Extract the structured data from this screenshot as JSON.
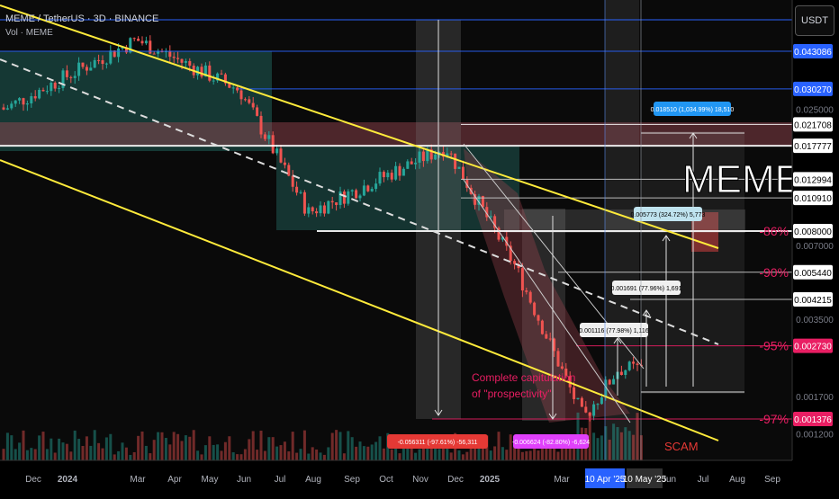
{
  "header": {
    "symbol_line": "MEME / TetherUS · 3D · BINANCE",
    "volume_line": "Vol · MEME"
  },
  "axis_unit": "USDT",
  "colors": {
    "background": "#000000",
    "up": "#26a69a",
    "down": "#ef5350",
    "channel": "#ffeb3b",
    "level_blue": "#2962ff",
    "level_white": "#ffffff",
    "pink": "#e91e63",
    "label_blue": "#2196f3"
  },
  "chart_data": {
    "type": "candlestick",
    "title": "MEME / TetherUS · 3D · BINANCE",
    "price_axis": {
      "scale": "log",
      "ticks": [
        "0.025000",
        "0.007000",
        "0.003500",
        "0.001700",
        "0.001200"
      ],
      "level_labels": [
        {
          "value": "0.043086",
          "style": "blue"
        },
        {
          "value": "0.030270",
          "style": "blue"
        },
        {
          "value": "0.021708",
          "style": "white"
        },
        {
          "value": "0.017777",
          "style": "white"
        },
        {
          "value": "0.012994",
          "style": "white"
        },
        {
          "value": "0.010910",
          "style": "white"
        },
        {
          "value": "0.008000",
          "style": "white"
        },
        {
          "value": "0.005440",
          "style": "white"
        },
        {
          "value": "0.004215",
          "style": "white"
        },
        {
          "value": "0.002730",
          "style": "pink"
        },
        {
          "value": "0.001376",
          "style": "pink"
        }
      ]
    },
    "time_axis": {
      "ticks": [
        "Dec",
        "2024",
        "Mar",
        "Apr",
        "May",
        "Jun",
        "Jul",
        "Aug",
        "Sep",
        "Oct",
        "Nov",
        "Dec",
        "2025",
        "Mar",
        "Jun",
        "Jul",
        "Aug",
        "Sep"
      ],
      "highlighted": [
        "10 Apr '25",
        "10 May '25"
      ]
    },
    "percent_levels": [
      {
        "label": "-86%",
        "price": 0.008
      },
      {
        "label": "-90%",
        "price": 0.00544
      },
      {
        "label": "-95%",
        "price": 0.00273
      },
      {
        "label": "-97%",
        "price": 0.001376
      }
    ],
    "measurements": [
      {
        "text": "0.018510 (1,034.99%) 18,510",
        "style": "blue"
      },
      {
        "text": "0.005773 (324.72%) 5,773",
        "style": "light"
      },
      {
        "text": "0.001691 (77.96%) 1,691",
        "style": "white"
      },
      {
        "text": "0.001116 (77.98%) 1,116",
        "style": "white"
      },
      {
        "text": "-0.056311 (-97.61%) -56,311",
        "style": "red"
      },
      {
        "text": "-0.006624 (-82.80%) -6,624",
        "style": "magenta"
      }
    ],
    "annotations": [
      {
        "text": "MEME",
        "style": "big"
      },
      {
        "text": "Complete capitulation",
        "style": "pink"
      },
      {
        "text": "of \"prospectivity\"",
        "style": "pink"
      },
      {
        "text": "SCAM",
        "style": "red"
      }
    ],
    "key_closes": [
      {
        "date": "2023-11",
        "close": 0.025
      },
      {
        "date": "2024-03",
        "close": 0.048
      },
      {
        "date": "2024-06",
        "close": 0.03
      },
      {
        "date": "2024-08",
        "close": 0.0095
      },
      {
        "date": "2024-12",
        "close": 0.0176
      },
      {
        "date": "2025-02",
        "close": 0.0058
      },
      {
        "date": "2025-04",
        "close": 0.00138
      },
      {
        "date": "2025-05",
        "close": 0.0022
      }
    ]
  }
}
